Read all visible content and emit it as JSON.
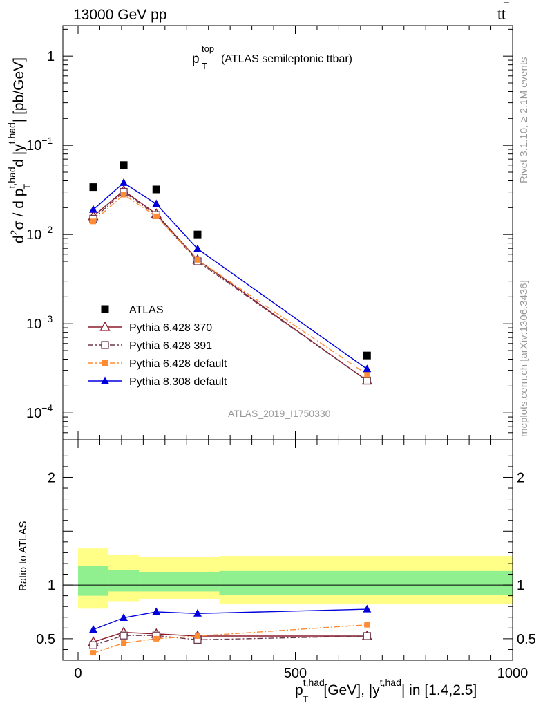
{
  "header": {
    "left": "13000 GeV pp",
    "right_base": "tt",
    "right_bar": "¯"
  },
  "plot_title": {
    "main": "p",
    "sup": "top",
    "sub": "T",
    "rest": "(ATLAS semileptonic ttbar)"
  },
  "side_labels": {
    "rivet": "Rivet 3.1.10, ≥ 2.1M events",
    "mcplots": "mcplots.cern.ch [arXiv:1306.3436]"
  },
  "analysis_id": "ATLAS_2019_I1750330",
  "ylabel_main": {
    "d": "d",
    "two": "2",
    "sigma": "σ",
    "slash": "/",
    "d2": "d p",
    "pt_sup": "t,had",
    "pt_sub": "T",
    "d3": "d |y",
    "y_sup": "t,had",
    "rest": "| [pb/GeV]"
  },
  "ylabel_ratio": "Ratio to ATLAS",
  "xlabel": {
    "p": "p",
    "p_sup": "t,had",
    "p_sub": "T",
    "mid": "[GeV], |y",
    "y_sup": "t,had",
    "end": "| in [1.4,2.5]"
  },
  "main_y_ticks": [
    {
      "value": 1,
      "label": "1",
      "sup": ""
    },
    {
      "value": 0.1,
      "label": "10",
      "sup": "−1"
    },
    {
      "value": 0.01,
      "label": "10",
      "sup": "−2"
    },
    {
      "value": 0.001,
      "label": "10",
      "sup": "−3"
    },
    {
      "value": 0.0001,
      "label": "10",
      "sup": "−4"
    }
  ],
  "ratio_y_ticks": [
    {
      "value": 2,
      "label": "2"
    },
    {
      "value": 1,
      "label": "1"
    },
    {
      "value": 0.5,
      "label": "0.5"
    }
  ],
  "x_ticks": [
    {
      "value": 0,
      "label": "0"
    },
    {
      "value": 500,
      "label": "500"
    },
    {
      "value": 1000,
      "label": "1000"
    }
  ],
  "chart_data": [
    {
      "type": "scatter",
      "panel": "main",
      "yscale": "log",
      "xlim": [
        -35,
        1000
      ],
      "ylim": [
        5e-05,
        2.2
      ],
      "x": [
        35,
        105,
        180,
        275,
        665
      ],
      "series": [
        {
          "name": "ATLAS",
          "values": [
            0.034,
            0.06,
            0.032,
            0.01,
            0.00044
          ],
          "color": "#000000",
          "marker": "square-filled",
          "line": "none"
        },
        {
          "name": "Pythia 6.428 370",
          "values": [
            0.016,
            0.031,
            0.017,
            0.0052,
            0.00023
          ],
          "color": "#8b1a2b",
          "marker": "triangle-open",
          "line": "solid"
        },
        {
          "name": "Pythia 6.428 391",
          "values": [
            0.015,
            0.03,
            0.0165,
            0.005,
            0.00023
          ],
          "color": "#6e3a4e",
          "marker": "square-open",
          "line": "dashdot"
        },
        {
          "name": "Pythia 6.428 default",
          "values": [
            0.014,
            0.028,
            0.016,
            0.0052,
            0.00027
          ],
          "color": "#ff8c33",
          "marker": "square-small-filled",
          "line": "dashdot"
        },
        {
          "name": "Pythia 8.308 default",
          "values": [
            0.019,
            0.038,
            0.022,
            0.0069,
            0.00031
          ],
          "color": "#0000dd",
          "marker": "triangle-filled",
          "line": "solid"
        }
      ],
      "legend_position": "lower-left"
    },
    {
      "type": "line",
      "panel": "ratio",
      "xlim": [
        -35,
        1000
      ],
      "ylim": [
        0.3,
        2.35
      ],
      "reference_line": 1,
      "bands": {
        "bin_edges": [
          0,
          70,
          140,
          325,
          1000
        ],
        "outer_yellow": [
          [
            0.78,
            1.34
          ],
          [
            0.85,
            1.28
          ],
          [
            0.87,
            1.26
          ],
          [
            0.82,
            1.27
          ]
        ],
        "inner_green": [
          [
            0.9,
            1.18
          ],
          [
            0.94,
            1.14
          ],
          [
            0.94,
            1.12
          ],
          [
            0.91,
            1.13
          ]
        ],
        "outer_color": "#ffff88",
        "inner_color": "#90f090"
      },
      "x": [
        35,
        105,
        180,
        275,
        665
      ],
      "series": [
        {
          "name": "Pythia 6.428 370",
          "values": [
            0.47,
            0.56,
            0.545,
            0.525,
            0.525
          ],
          "color": "#8b1a2b",
          "marker": "triangle-open",
          "line": "solid"
        },
        {
          "name": "Pythia 6.428 391",
          "values": [
            0.44,
            0.53,
            0.53,
            0.49,
            0.525
          ],
          "color": "#6e3a4e",
          "marker": "square-open",
          "line": "dashdot"
        },
        {
          "name": "Pythia 6.428 default",
          "values": [
            0.37,
            0.46,
            0.5,
            0.525,
            0.63
          ],
          "color": "#ff8c33",
          "marker": "square-small-filled",
          "line": "dashdot"
        },
        {
          "name": "Pythia 8.308 default",
          "values": [
            0.585,
            0.695,
            0.75,
            0.735,
            0.775
          ],
          "color": "#0000dd",
          "marker": "triangle-filled",
          "line": "solid"
        }
      ]
    }
  ]
}
